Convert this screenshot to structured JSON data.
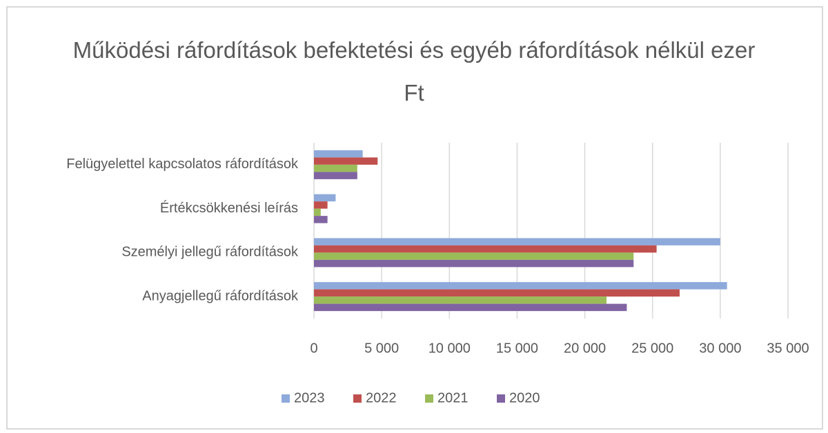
{
  "chart_data": {
    "type": "bar",
    "orientation": "horizontal",
    "title": "Működési ráfordítások befektetési és egyéb ráfordítások nélkül ezer Ft",
    "categories": [
      "Felügyelettel kapcsolatos ráfordítások",
      "Értékcsökkenési leírás",
      "Személyi jellegű ráfordítások",
      "Anyagjellegű ráfordítások"
    ],
    "series": [
      {
        "name": "2023",
        "color": "#8eaadb",
        "values": [
          3600,
          1600,
          30000,
          30500
        ]
      },
      {
        "name": "2022",
        "color": "#c0504d",
        "values": [
          4700,
          1000,
          25300,
          27000
        ]
      },
      {
        "name": "2021",
        "color": "#9bbb59",
        "values": [
          3200,
          500,
          23600,
          21600
        ]
      },
      {
        "name": "2020",
        "color": "#8064a2",
        "values": [
          3200,
          1000,
          23600,
          23100
        ]
      }
    ],
    "xlim": [
      0,
      35000
    ],
    "xticks": [
      0,
      {
        "value": 5000,
        "label": "5 000"
      },
      {
        "value": 10000,
        "label": "10 000"
      },
      {
        "value": 15000,
        "label": "15 000"
      },
      {
        "value": 20000,
        "label": "20 000"
      },
      {
        "value": 25000,
        "label": "25 000"
      },
      {
        "value": 30000,
        "label": "30 000"
      },
      {
        "value": 35000,
        "label": "35 000"
      }
    ],
    "grid": true,
    "legend": "bottom"
  }
}
